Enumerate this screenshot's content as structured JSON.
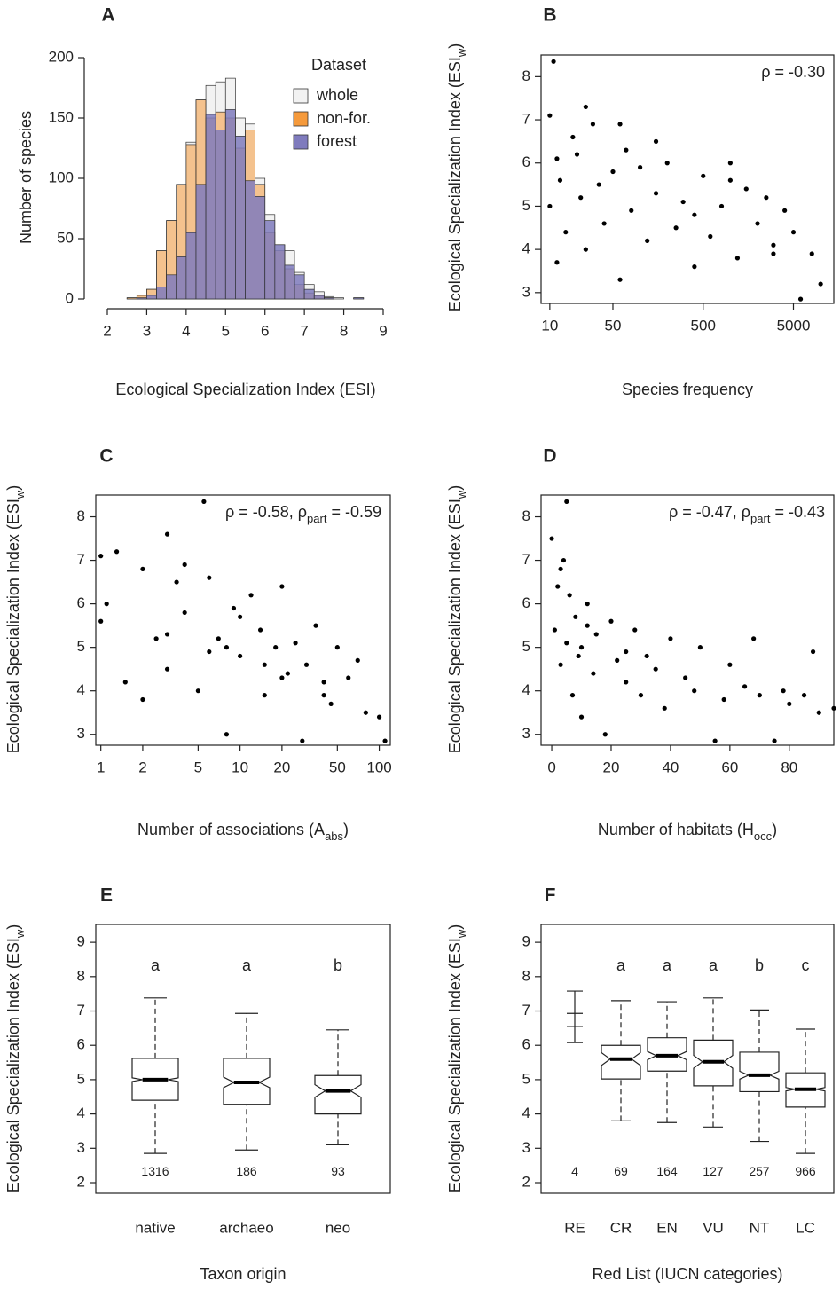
{
  "chart_data": [
    {
      "type": "histogram",
      "label": "A",
      "xlabel": "Ecological Specialization Index (ESI)",
      "ylabel": "Number of species",
      "bins": [
        2.5,
        2.75,
        3,
        3.25,
        3.5,
        3.75,
        4,
        4.25,
        4.5,
        4.75,
        5,
        5.25,
        5.5,
        5.75,
        6,
        6.25,
        6.5,
        6.75,
        7,
        7.25,
        7.5,
        7.75,
        8,
        8.25,
        8.5
      ],
      "series": [
        {
          "name": "whole",
          "color": "#f2f2f2",
          "values": [
            1,
            3,
            8,
            40,
            65,
            95,
            130,
            165,
            177,
            180,
            183,
            150,
            145,
            100,
            70,
            45,
            40,
            22,
            12,
            6,
            2,
            1,
            0,
            1
          ]
        },
        {
          "name": "non-for.",
          "color": "#f59a3c",
          "values": [
            1,
            3,
            8,
            40,
            65,
            95,
            128,
            165,
            150,
            155,
            150,
            125,
            140,
            95,
            55,
            40,
            25,
            12,
            5,
            3,
            1,
            0,
            0,
            0
          ]
        },
        {
          "name": "forest",
          "color": "#7f7bbd",
          "values": [
            0,
            1,
            3,
            10,
            20,
            35,
            55,
            95,
            153,
            140,
            157,
            135,
            98,
            85,
            65,
            45,
            28,
            20,
            8,
            3,
            1,
            0,
            0,
            1
          ]
        }
      ],
      "legend_title": "Dataset",
      "legend": "top-right",
      "xlim": [
        2,
        9
      ],
      "xticks": [
        2,
        3,
        4,
        5,
        6,
        7,
        8,
        9
      ],
      "ylim": [
        0,
        200
      ],
      "yticks": [
        0,
        50,
        100,
        150,
        200
      ]
    },
    {
      "type": "scatter",
      "label": "B",
      "xlabel": "Species frequency",
      "ylabel": [
        "Ecological Specialization Index (ESI",
        "w",
        ")"
      ],
      "annotation": "ρ = -0.30",
      "xscale": "log",
      "color": "#000000",
      "x": [
        10,
        10,
        11,
        12,
        13,
        15,
        18,
        20,
        22,
        25,
        30,
        35,
        40,
        50,
        60,
        70,
        80,
        100,
        120,
        150,
        200,
        250,
        300,
        400,
        500,
        600,
        800,
        1000,
        1200,
        1500,
        2000,
        2500,
        3000,
        4000,
        5000,
        6000,
        8000,
        10000,
        12,
        25,
        60,
        150,
        400,
        1000,
        3000
      ],
      "y": [
        7.1,
        5.0,
        8.35,
        3.7,
        5.6,
        4.4,
        6.6,
        6.2,
        5.2,
        4.0,
        6.9,
        5.5,
        4.6,
        5.8,
        3.3,
        6.3,
        4.9,
        5.9,
        4.2,
        5.3,
        6.0,
        4.5,
        5.1,
        3.6,
        5.7,
        4.3,
        5.0,
        6.0,
        3.8,
        5.4,
        4.6,
        5.2,
        3.9,
        4.9,
        4.4,
        2.85,
        3.9,
        3.2,
        6.1,
        7.3,
        6.9,
        6.5,
        4.8,
        5.6,
        4.1
      ],
      "xlim": [
        8,
        14000
      ],
      "xticks": [
        10,
        50,
        500,
        5000
      ],
      "ylim": [
        2.75,
        8.5
      ],
      "yticks": [
        3,
        4,
        5,
        6,
        7,
        8
      ]
    },
    {
      "type": "scatter",
      "label": "C",
      "xlabel": [
        "Number of associations (A",
        "abs",
        ")"
      ],
      "ylabel": [
        "Ecological Specialization Index (ESI",
        "w",
        ")"
      ],
      "annotation": [
        "ρ = -0.58, ρ",
        "part",
        " = -0.59"
      ],
      "xscale": "log",
      "color": "#000000",
      "x": [
        1,
        1,
        1.1,
        1.3,
        1.5,
        2,
        2,
        2.5,
        3,
        3,
        3.5,
        4,
        5,
        5.5,
        6,
        7,
        8,
        9,
        10,
        12,
        14,
        15,
        18,
        20,
        22,
        25,
        28,
        30,
        35,
        40,
        45,
        50,
        60,
        70,
        80,
        100,
        110,
        3,
        6,
        10,
        20,
        40,
        4,
        8,
        15
      ],
      "y": [
        7.1,
        5.6,
        6.0,
        7.2,
        4.2,
        6.8,
        3.8,
        5.2,
        7.6,
        4.5,
        6.5,
        5.8,
        4.0,
        8.35,
        6.6,
        5.2,
        3.0,
        5.9,
        4.8,
        6.2,
        5.4,
        3.9,
        5.0,
        6.4,
        4.4,
        5.1,
        2.85,
        4.6,
        5.5,
        4.2,
        3.7,
        5.0,
        4.3,
        4.7,
        3.5,
        3.4,
        2.85,
        5.3,
        4.9,
        5.7,
        4.3,
        3.9,
        6.9,
        5.0,
        4.6
      ],
      "xlim": [
        0.92,
        120
      ],
      "xticks": [
        1,
        2,
        5,
        10,
        20,
        50,
        100
      ],
      "ylim": [
        2.75,
        8.5
      ],
      "yticks": [
        3,
        4,
        5,
        6,
        7,
        8
      ]
    },
    {
      "type": "scatter",
      "label": "D",
      "xlabel": [
        "Number of habitats (H",
        "occ",
        ")"
      ],
      "ylabel": [
        "Ecological Specialization Index (ESI",
        "w",
        ")"
      ],
      "annotation": [
        "ρ = -0.47, ρ",
        "part",
        " = -0.43"
      ],
      "xscale": "linear",
      "color": "#000000",
      "x": [
        0,
        1,
        2,
        3,
        4,
        5,
        5,
        6,
        7,
        8,
        9,
        10,
        10,
        12,
        14,
        15,
        18,
        20,
        22,
        25,
        28,
        30,
        32,
        35,
        38,
        40,
        45,
        48,
        50,
        55,
        58,
        60,
        65,
        68,
        70,
        75,
        78,
        80,
        85,
        88,
        90,
        95,
        3,
        12,
        25
      ],
      "y": [
        7.5,
        5.4,
        6.4,
        4.6,
        7.0,
        8.35,
        5.1,
        6.2,
        3.9,
        5.7,
        4.8,
        5.0,
        3.4,
        6.0,
        4.4,
        5.3,
        3.0,
        5.6,
        4.7,
        4.2,
        5.4,
        3.9,
        4.8,
        4.5,
        3.6,
        5.2,
        4.3,
        4.0,
        5.0,
        2.85,
        3.8,
        4.6,
        4.1,
        5.2,
        3.9,
        2.85,
        4.0,
        3.7,
        3.9,
        4.9,
        3.5,
        3.6,
        6.8,
        5.5,
        4.9
      ],
      "xlim": [
        -3.6,
        95
      ],
      "xticks": [
        0,
        20,
        40,
        60,
        80
      ],
      "ylim": [
        2.75,
        8.5
      ],
      "yticks": [
        3,
        4,
        5,
        6,
        7,
        8
      ]
    },
    {
      "type": "boxplot",
      "label": "E",
      "xlabel": "Taxon origin",
      "ylabel": [
        "Ecological Specialization Index (ESI",
        "w",
        ")"
      ],
      "categories": [
        "native",
        "archaeo",
        "neo"
      ],
      "whisker_low": [
        2.85,
        2.95,
        3.1
      ],
      "q1": [
        4.4,
        4.28,
        4.0
      ],
      "median": [
        5.0,
        4.92,
        4.67
      ],
      "q3": [
        5.62,
        5.62,
        5.12
      ],
      "whisker_high": [
        7.38,
        6.93,
        6.45
      ],
      "points": [
        null,
        null,
        null
      ],
      "letters": [
        "a",
        "a",
        "b"
      ],
      "n": [
        1316,
        186,
        93
      ],
      "ylim": [
        1.69,
        9.52
      ],
      "yticks": [
        2,
        3,
        4,
        5,
        6,
        7,
        8,
        9
      ]
    },
    {
      "type": "boxplot",
      "label": "F",
      "xlabel": "Red List (IUCN categories)",
      "ylabel": [
        "Ecological Specialization Index (ESI",
        "w",
        ")"
      ],
      "categories": [
        "RE",
        "CR",
        "EN",
        "VU",
        "NT",
        "LC"
      ],
      "whisker_low": [
        null,
        3.8,
        3.75,
        3.62,
        3.2,
        2.85
      ],
      "q1": [
        null,
        5.02,
        5.25,
        4.82,
        4.65,
        4.2
      ],
      "median": [
        null,
        5.6,
        5.7,
        5.52,
        5.13,
        4.72
      ],
      "q3": [
        null,
        6.0,
        6.22,
        6.15,
        5.8,
        5.2
      ],
      "whisker_high": [
        null,
        7.3,
        7.27,
        7.38,
        7.03,
        6.47
      ],
      "points": [
        [
          6.08,
          6.55,
          6.93,
          7.58
        ],
        null,
        null,
        null,
        null,
        null
      ],
      "letters": [
        null,
        "a",
        "a",
        "a",
        "b",
        "c"
      ],
      "n": [
        4,
        69,
        164,
        127,
        257,
        966
      ],
      "ylim": [
        1.69,
        9.52
      ],
      "yticks": [
        2,
        3,
        4,
        5,
        6,
        7,
        8,
        9
      ]
    }
  ]
}
